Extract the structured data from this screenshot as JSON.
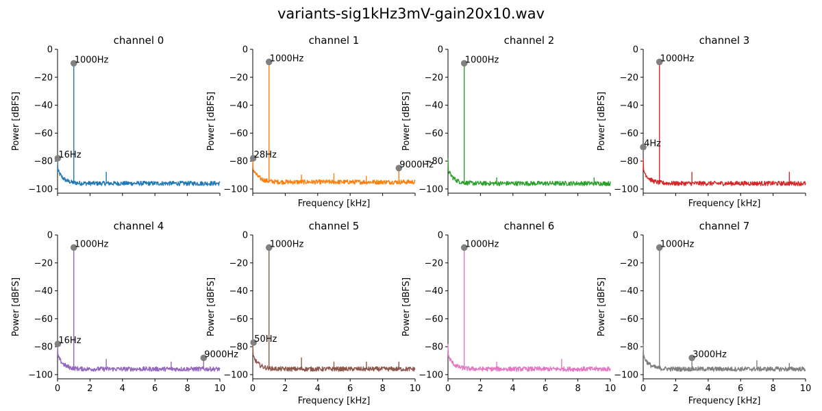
{
  "title": "variants-sig1kHz3mV-gain20x10.wav",
  "chart_data": {
    "type": "line",
    "layout": "2x4 grid of spectra",
    "shared_ylabel": "Power [dBFS]",
    "shared_xlabel": "Frequency [kHz]",
    "xlim": [
      0,
      10
    ],
    "ylim": [
      -103,
      0
    ],
    "yticks": [
      0,
      -20,
      -40,
      -60,
      -80,
      -100
    ],
    "xticks": [
      0,
      2,
      4,
      6,
      8,
      10
    ],
    "grid": false,
    "panels": [
      {
        "title": "channel 0",
        "color": "#1f77b4",
        "show_xlabel": false,
        "show_xticklabels": false,
        "noise_floor": -96,
        "spikes": [
          {
            "x": 1.0,
            "y": -10
          },
          {
            "x": 3.0,
            "y": -88
          }
        ],
        "markers": [
          {
            "x": 0.016,
            "y": -78,
            "label": "16Hz"
          },
          {
            "x": 1.0,
            "y": -10,
            "label": "1000Hz"
          }
        ]
      },
      {
        "title": "channel 1",
        "color": "#ff7f0e",
        "show_xlabel": true,
        "show_xticklabels": false,
        "noise_floor": -95,
        "spikes": [
          {
            "x": 1.0,
            "y": -9
          },
          {
            "x": 3.0,
            "y": -90
          },
          {
            "x": 5.0,
            "y": -89
          },
          {
            "x": 7.0,
            "y": -91
          },
          {
            "x": 9.0,
            "y": -85
          }
        ],
        "markers": [
          {
            "x": 0.028,
            "y": -78,
            "label": "28Hz"
          },
          {
            "x": 1.0,
            "y": -9,
            "label": "1000Hz"
          },
          {
            "x": 9.0,
            "y": -85,
            "label": "9000Hz"
          }
        ]
      },
      {
        "title": "channel 2",
        "color": "#2ca02c",
        "show_xlabel": false,
        "show_xticklabels": false,
        "noise_floor": -96,
        "spikes": [
          {
            "x": 1.0,
            "y": -10
          },
          {
            "x": 3.0,
            "y": -92
          },
          {
            "x": 9.0,
            "y": -92
          }
        ],
        "markers": [
          {
            "x": 1.0,
            "y": -10,
            "label": "1000Hz"
          }
        ]
      },
      {
        "title": "channel 3",
        "color": "#d62728",
        "show_xlabel": true,
        "show_xticklabels": false,
        "noise_floor": -96,
        "spikes": [
          {
            "x": 1.0,
            "y": -9
          },
          {
            "x": 3.0,
            "y": -88
          },
          {
            "x": 9.0,
            "y": -88
          }
        ],
        "markers": [
          {
            "x": 0.004,
            "y": -70,
            "label": "4Hz"
          },
          {
            "x": 1.0,
            "y": -9,
            "label": "1000Hz"
          }
        ]
      },
      {
        "title": "channel 4",
        "color": "#9467bd",
        "show_xlabel": false,
        "show_xticklabels": true,
        "noise_floor": -96,
        "spikes": [
          {
            "x": 1.0,
            "y": -9
          },
          {
            "x": 3.0,
            "y": -89
          },
          {
            "x": 7.0,
            "y": -91
          },
          {
            "x": 9.0,
            "y": -88
          }
        ],
        "markers": [
          {
            "x": 0.016,
            "y": -78,
            "label": "16Hz"
          },
          {
            "x": 1.0,
            "y": -9,
            "label": "1000Hz"
          },
          {
            "x": 9.0,
            "y": -88,
            "label": "9000Hz"
          }
        ]
      },
      {
        "title": "channel 5",
        "color": "#8c564b",
        "show_xlabel": true,
        "show_xticklabels": true,
        "noise_floor": -96,
        "spikes": [
          {
            "x": 1.0,
            "y": -9
          },
          {
            "x": 3.0,
            "y": -88
          },
          {
            "x": 5.0,
            "y": -91
          },
          {
            "x": 7.0,
            "y": -91
          },
          {
            "x": 9.0,
            "y": -91
          }
        ],
        "markers": [
          {
            "x": 0.05,
            "y": -77,
            "label": "50Hz"
          },
          {
            "x": 1.0,
            "y": -9,
            "label": "1000Hz"
          }
        ]
      },
      {
        "title": "channel 6",
        "color": "#e377c2",
        "show_xlabel": false,
        "show_xticklabels": true,
        "noise_floor": -96,
        "spikes": [
          {
            "x": 1.0,
            "y": -9
          },
          {
            "x": 3.0,
            "y": -91
          },
          {
            "x": 7.0,
            "y": -89
          }
        ],
        "markers": [
          {
            "x": 1.0,
            "y": -9,
            "label": "1000Hz"
          }
        ]
      },
      {
        "title": "channel 7",
        "color": "#7f7f7f",
        "show_xlabel": true,
        "show_xticklabels": true,
        "noise_floor": -96,
        "spikes": [
          {
            "x": 1.0,
            "y": -9
          },
          {
            "x": 3.0,
            "y": -88
          },
          {
            "x": 7.0,
            "y": -90
          },
          {
            "x": 9.0,
            "y": -92
          }
        ],
        "markers": [
          {
            "x": 1.0,
            "y": -9,
            "label": "1000Hz"
          },
          {
            "x": 3.0,
            "y": -88,
            "label": "3000Hz"
          }
        ]
      }
    ]
  }
}
